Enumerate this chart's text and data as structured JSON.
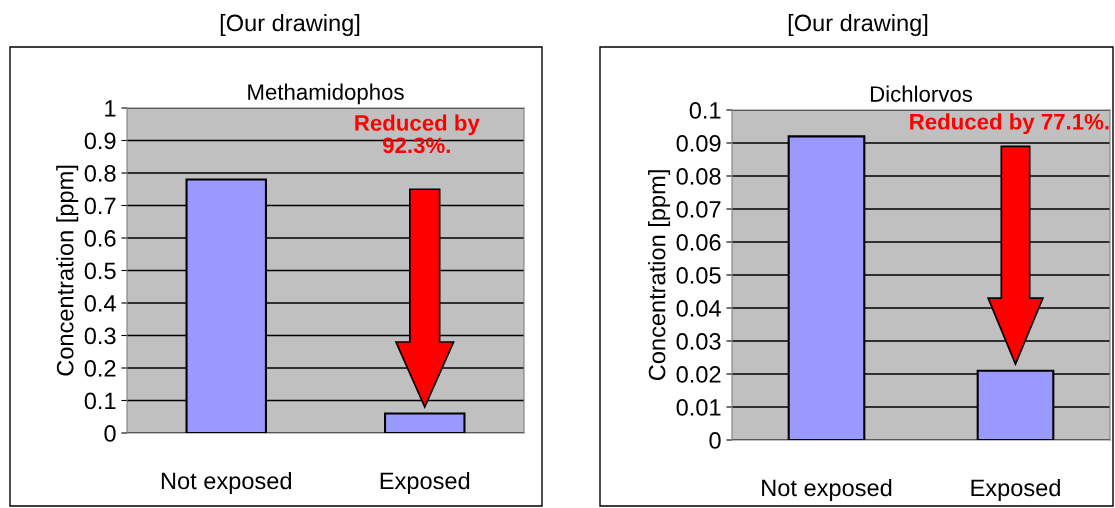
{
  "chart_data": [
    {
      "type": "bar",
      "title": "Methamidophos",
      "subtitle": "[Our drawing]",
      "ylabel": "Concentration [ppm]",
      "categories": [
        "Not exposed",
        "Exposed"
      ],
      "values": [
        0.78,
        0.06
      ],
      "color": "#9999ff",
      "ylim": [
        0,
        1
      ],
      "yticks": [
        0,
        0.1,
        0.2,
        0.3,
        0.4,
        0.5,
        0.6,
        0.7,
        0.8,
        0.9,
        1
      ],
      "grid": "y",
      "annotations": [
        "Reduced by\n92.3%."
      ]
    },
    {
      "type": "bar",
      "title": "Dichlorvos",
      "subtitle": "[Our drawing]",
      "ylabel": "Concentration [ppm]",
      "categories": [
        "Not exposed",
        "Exposed"
      ],
      "values": [
        0.092,
        0.021
      ],
      "color": "#9999ff",
      "ylim": [
        0,
        0.1
      ],
      "yticks": [
        0,
        0.01,
        0.02,
        0.03,
        0.04,
        0.05,
        0.06,
        0.07,
        0.08,
        0.09,
        0.1
      ],
      "grid": "y",
      "annotations": [
        "Reduced by 77.1%."
      ]
    }
  ]
}
